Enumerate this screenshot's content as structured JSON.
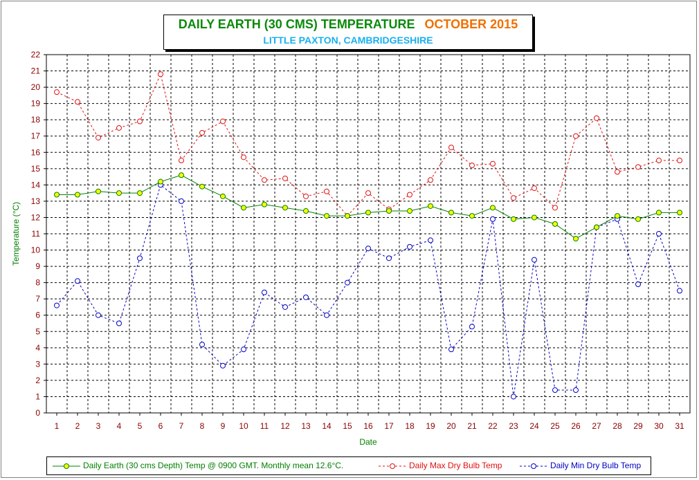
{
  "chart_data": {
    "type": "line",
    "title": "DAILY EARTH (30 CMS) TEMPERATURE",
    "title_period": "OCTOBER 2015",
    "subtitle": "LITTLE PAXTON, CAMBRIDGESHIRE",
    "xlabel": "Date",
    "ylabel": "Temperature (°C)",
    "ylim": [
      0,
      22
    ],
    "yticks": [
      0,
      1,
      2,
      3,
      4,
      5,
      6,
      7,
      8,
      9,
      10,
      11,
      12,
      13,
      14,
      15,
      16,
      17,
      18,
      19,
      20,
      21,
      22
    ],
    "grid": true,
    "legend_position": "bottom",
    "x": [
      1,
      2,
      3,
      4,
      5,
      6,
      7,
      8,
      9,
      10,
      11,
      12,
      13,
      14,
      15,
      16,
      17,
      18,
      19,
      20,
      21,
      22,
      23,
      24,
      25,
      26,
      27,
      28,
      29,
      30,
      31
    ],
    "series": [
      {
        "name": "Daily Earth (30 cms Depth) Temp @ 0900 GMT. Monthly mean 12.6°C.",
        "color": "#008000",
        "marker_fill": "#ffff00",
        "style": "solid",
        "values": [
          13.4,
          13.4,
          13.6,
          13.5,
          13.5,
          14.2,
          14.6,
          13.9,
          13.3,
          12.6,
          12.8,
          12.6,
          12.4,
          12.1,
          12.1,
          12.3,
          12.4,
          12.4,
          12.7,
          12.3,
          12.1,
          12.6,
          11.9,
          12.0,
          11.6,
          10.7,
          11.4,
          12.1,
          11.9,
          12.3,
          12.3
        ]
      },
      {
        "name": "Daily Max Dry Bulb Temp",
        "color": "#e01010",
        "marker_fill": "#ffffff",
        "style": "dashed",
        "values": [
          19.7,
          19.1,
          16.9,
          17.5,
          17.9,
          20.8,
          15.5,
          17.2,
          17.9,
          15.7,
          14.3,
          14.4,
          13.3,
          13.6,
          12.1,
          13.5,
          12.5,
          13.4,
          14.3,
          16.3,
          15.2,
          15.3,
          13.2,
          13.8,
          12.6,
          17.0,
          18.1,
          14.8,
          15.1,
          15.5,
          15.5
        ]
      },
      {
        "name": "Daily Min Dry Bulb Temp",
        "color": "#0000c0",
        "marker_fill": "#ffffff",
        "style": "dashed",
        "values": [
          6.6,
          8.1,
          6.0,
          5.5,
          9.5,
          14.0,
          13.0,
          4.2,
          2.9,
          3.9,
          7.4,
          6.5,
          7.1,
          6.0,
          8.0,
          10.1,
          9.5,
          10.2,
          10.6,
          3.9,
          5.3,
          11.9,
          1.0,
          9.4,
          1.4,
          1.4,
          11.4,
          11.9,
          7.9,
          11.0,
          7.5
        ]
      }
    ]
  }
}
